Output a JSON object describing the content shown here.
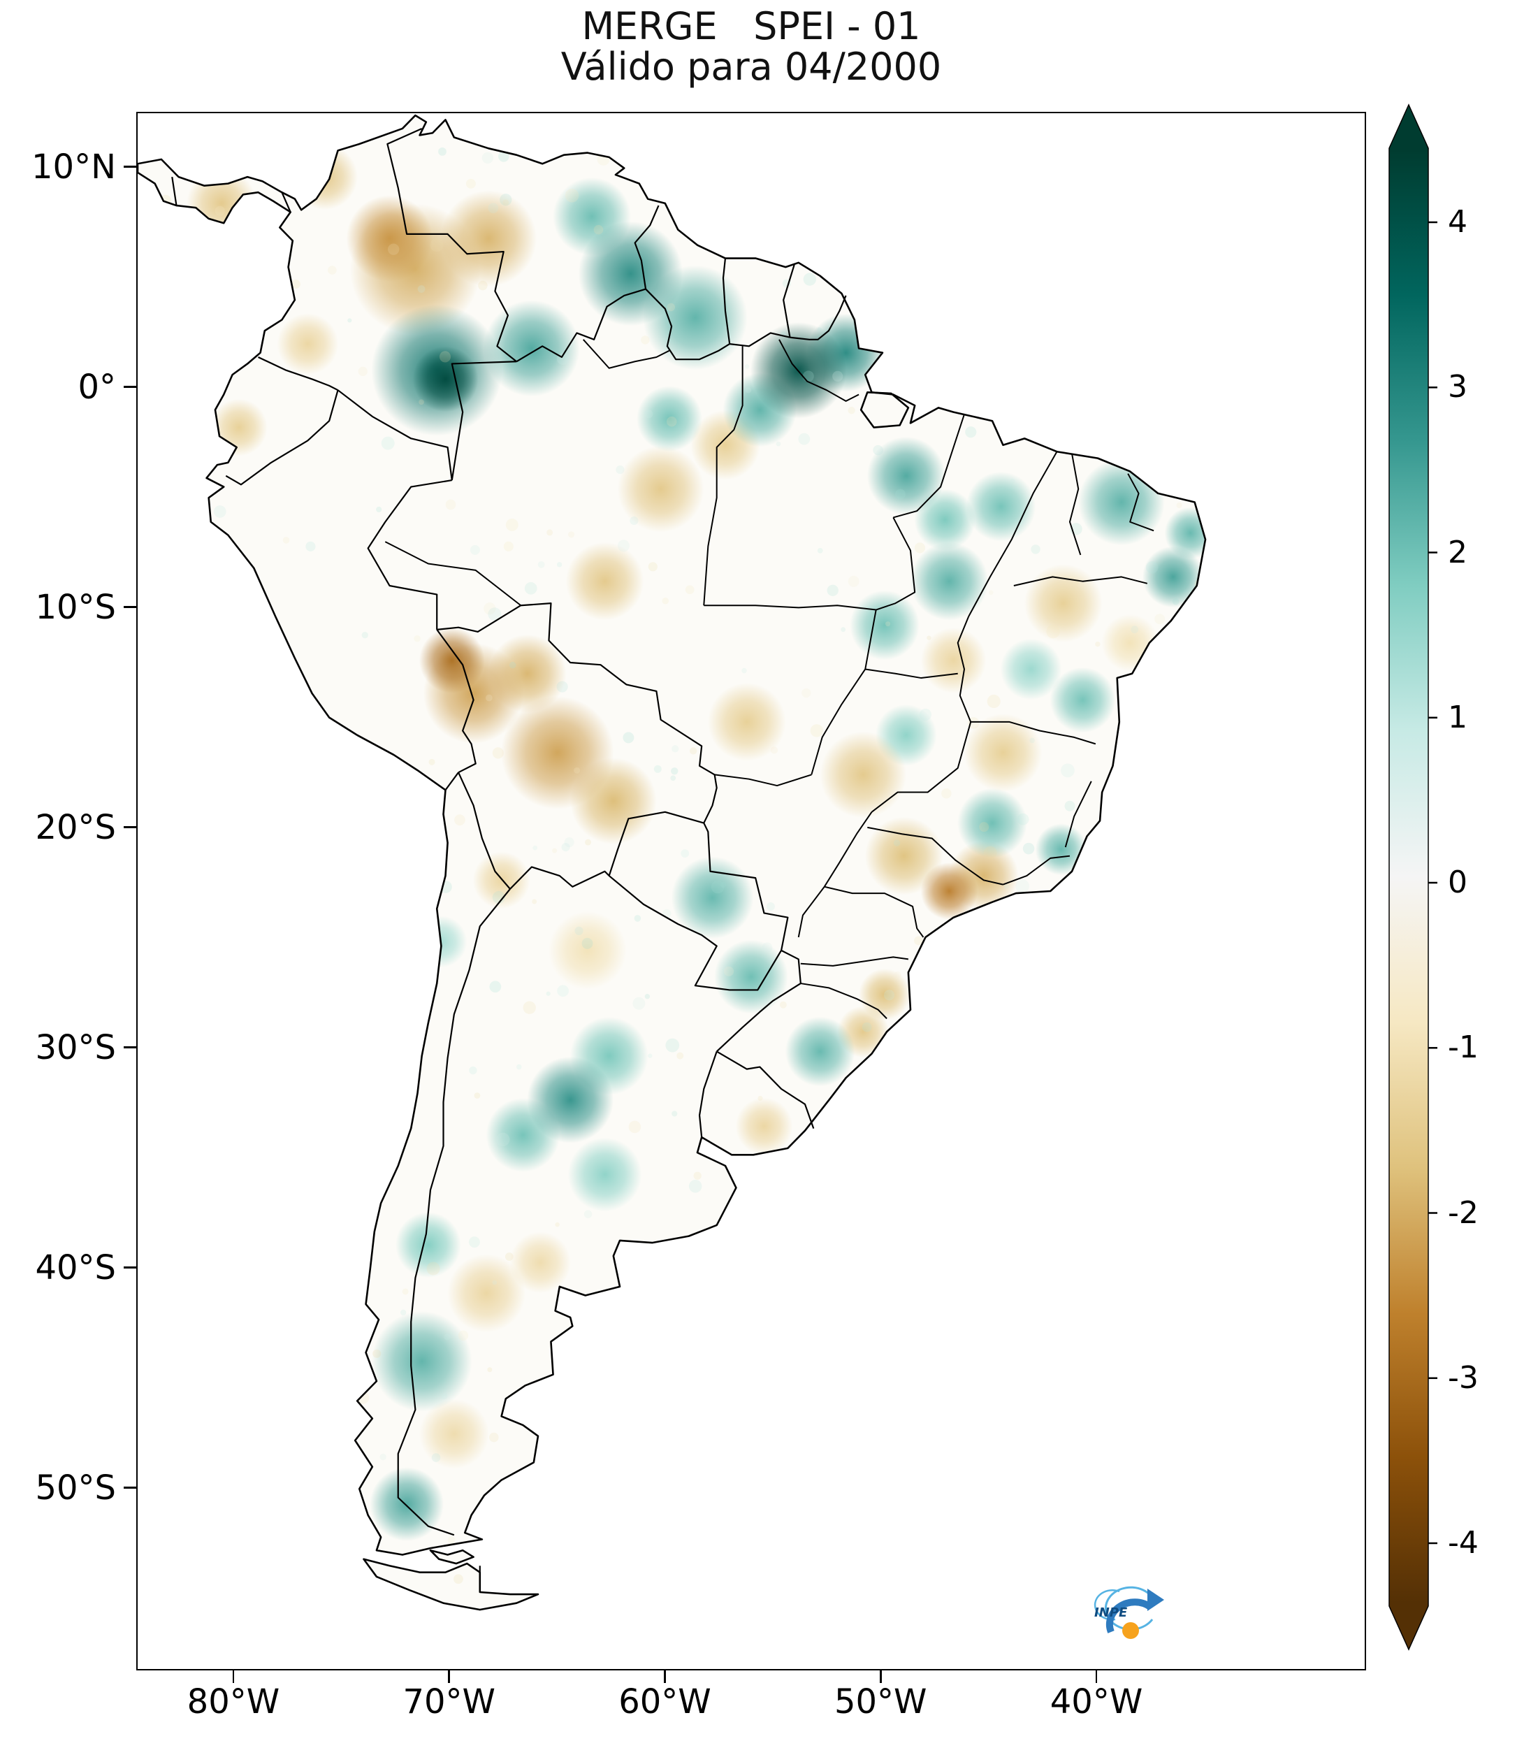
{
  "header": {
    "title": "MERGE   SPEI - 01",
    "subtitle": "Válido para 04/2000"
  },
  "axes": {
    "y_ticks": [
      {
        "label": "10°N",
        "lat": 10
      },
      {
        "label": "0°",
        "lat": 0
      },
      {
        "label": "10°S",
        "lat": -10
      },
      {
        "label": "20°S",
        "lat": -20
      },
      {
        "label": "30°S",
        "lat": -30
      },
      {
        "label": "40°S",
        "lat": -40
      },
      {
        "label": "50°S",
        "lat": -50
      }
    ],
    "x_ticks": [
      {
        "label": "80°W",
        "lon": -80
      },
      {
        "label": "70°W",
        "lon": -70
      },
      {
        "label": "60°W",
        "lon": -60
      },
      {
        "label": "50°W",
        "lon": -50
      },
      {
        "label": "40°W",
        "lon": -40
      }
    ]
  },
  "colorbar": {
    "colormap": "BrBG",
    "vmin": -4,
    "vmax": 4,
    "tick_labels": [
      "4",
      "3",
      "2",
      "1",
      "0",
      "-1",
      "-2",
      "-3",
      "-4"
    ],
    "tick_values": [
      4,
      3,
      2,
      1,
      0,
      -1,
      -2,
      -3,
      -4
    ],
    "colors_top_to_bottom": [
      "#003c30",
      "#01665e",
      "#35978f",
      "#80cdc1",
      "#c7eae5",
      "#f5f5f5",
      "#f6e8c3",
      "#dfc27d",
      "#bf812d",
      "#8c510a",
      "#543005"
    ]
  },
  "logo": {
    "text": "INPE",
    "swirl_color": "#56b3e3",
    "arrow_color": "#2e7bbf",
    "dot_color": "#f6a21d",
    "text_color": "#0f4c81"
  },
  "chart_data": {
    "type": "heatmap",
    "title": "MERGE   SPEI - 01",
    "subtitle": "Válido para 04/2000",
    "dataset": "MERGE",
    "index": "SPEI-01",
    "valid_for": "04/2000",
    "region": "South America",
    "colormap": "BrBG",
    "value_range": [
      -4,
      4
    ],
    "x_tick_labels": [
      "80°W",
      "70°W",
      "60°W",
      "50°W",
      "40°W"
    ],
    "y_tick_labels": [
      "10°N",
      "0°",
      "10°S",
      "20°S",
      "30°S",
      "40°S",
      "50°S"
    ],
    "anomalies": [
      {
        "lon": -70.6,
        "lat": 0.8,
        "spei": 2.6,
        "radius_deg": 3.0
      },
      {
        "lon": -70.2,
        "lat": 0.4,
        "spei": 3.7,
        "radius_deg": 1.5
      },
      {
        "lon": -66.2,
        "lat": 1.8,
        "spei": 1.7,
        "radius_deg": 2.2
      },
      {
        "lon": -61.6,
        "lat": 5.2,
        "spei": 2.2,
        "radius_deg": 2.4
      },
      {
        "lon": -58.6,
        "lat": 3.2,
        "spei": 1.5,
        "radius_deg": 2.4
      },
      {
        "lon": -63.4,
        "lat": 7.8,
        "spei": 1.3,
        "radius_deg": 1.8
      },
      {
        "lon": -53.8,
        "lat": 0.8,
        "spei": 3.5,
        "radius_deg": 2.2
      },
      {
        "lon": -51.6,
        "lat": 1.6,
        "spei": 2.3,
        "radius_deg": 1.8
      },
      {
        "lon": -55.6,
        "lat": -1.0,
        "spei": 1.5,
        "radius_deg": 1.7
      },
      {
        "lon": -59.8,
        "lat": -1.4,
        "spei": 1.2,
        "radius_deg": 1.5
      },
      {
        "lon": -48.8,
        "lat": -4.0,
        "spei": 1.7,
        "radius_deg": 1.8
      },
      {
        "lon": -47.0,
        "lat": -6.0,
        "spei": 1.1,
        "radius_deg": 1.4
      },
      {
        "lon": -46.8,
        "lat": -8.8,
        "spei": 1.5,
        "radius_deg": 1.8
      },
      {
        "lon": -49.8,
        "lat": -10.8,
        "spei": 1.2,
        "radius_deg": 1.6
      },
      {
        "lon": -44.4,
        "lat": -5.4,
        "spei": 1.2,
        "radius_deg": 1.6
      },
      {
        "lon": -38.8,
        "lat": -5.2,
        "spei": 1.5,
        "radius_deg": 2.0
      },
      {
        "lon": -35.6,
        "lat": -6.6,
        "spei": 1.4,
        "radius_deg": 1.2
      },
      {
        "lon": -36.4,
        "lat": -8.6,
        "spei": 1.8,
        "radius_deg": 1.4
      },
      {
        "lon": -40.6,
        "lat": -14.2,
        "spei": 1.2,
        "radius_deg": 1.5
      },
      {
        "lon": -43.0,
        "lat": -12.8,
        "spei": 0.8,
        "radius_deg": 1.4
      },
      {
        "lon": -44.8,
        "lat": -19.8,
        "spei": 1.3,
        "radius_deg": 1.6
      },
      {
        "lon": -41.6,
        "lat": -21.0,
        "spei": 1.4,
        "radius_deg": 1.2
      },
      {
        "lon": -48.8,
        "lat": -15.8,
        "spei": 0.9,
        "radius_deg": 1.4
      },
      {
        "lon": -57.8,
        "lat": -23.2,
        "spei": 1.4,
        "radius_deg": 1.9
      },
      {
        "lon": -56.0,
        "lat": -26.8,
        "spei": 1.3,
        "radius_deg": 1.7
      },
      {
        "lon": -52.8,
        "lat": -30.2,
        "spei": 1.4,
        "radius_deg": 1.6
      },
      {
        "lon": -64.4,
        "lat": -32.4,
        "spei": 2.1,
        "radius_deg": 2.0
      },
      {
        "lon": -66.6,
        "lat": -34.0,
        "spei": 1.2,
        "radius_deg": 1.7
      },
      {
        "lon": -62.6,
        "lat": -30.4,
        "spei": 1.1,
        "radius_deg": 1.8
      },
      {
        "lon": -62.8,
        "lat": -35.8,
        "spei": 0.9,
        "radius_deg": 1.7
      },
      {
        "lon": -71.3,
        "lat": -44.3,
        "spei": 1.5,
        "radius_deg": 2.3
      },
      {
        "lon": -72.0,
        "lat": -50.8,
        "spei": 1.7,
        "radius_deg": 1.7
      },
      {
        "lon": -71.0,
        "lat": -39.0,
        "spei": 1.0,
        "radius_deg": 1.5
      },
      {
        "lon": -70.4,
        "lat": -25.2,
        "spei": 0.7,
        "radius_deg": 1.2
      },
      {
        "lon": -72.8,
        "lat": 6.8,
        "spei": -1.7,
        "radius_deg": 2.0
      },
      {
        "lon": -71.6,
        "lat": 5.4,
        "spei": -1.3,
        "radius_deg": 3.0
      },
      {
        "lon": -68.2,
        "lat": 6.8,
        "spei": -1.2,
        "radius_deg": 2.2
      },
      {
        "lon": -75.8,
        "lat": 9.6,
        "spei": -0.9,
        "radius_deg": 1.5
      },
      {
        "lon": -80.6,
        "lat": 8.4,
        "spei": -0.9,
        "radius_deg": 1.6
      },
      {
        "lon": -76.6,
        "lat": 2.0,
        "spei": -0.7,
        "radius_deg": 1.4
      },
      {
        "lon": -79.8,
        "lat": -1.8,
        "spei": -0.8,
        "radius_deg": 1.3
      },
      {
        "lon": -69.9,
        "lat": -12.4,
        "spei": -2.4,
        "radius_deg": 1.5
      },
      {
        "lon": -68.9,
        "lat": -13.9,
        "spei": -1.5,
        "radius_deg": 2.3
      },
      {
        "lon": -66.4,
        "lat": -13.0,
        "spei": -1.2,
        "radius_deg": 1.8
      },
      {
        "lon": -65.0,
        "lat": -16.6,
        "spei": -1.5,
        "radius_deg": 2.6
      },
      {
        "lon": -62.4,
        "lat": -18.8,
        "spei": -1.1,
        "radius_deg": 2.0
      },
      {
        "lon": -60.2,
        "lat": -4.6,
        "spei": -0.9,
        "radius_deg": 2.0
      },
      {
        "lon": -57.2,
        "lat": -2.6,
        "spei": -0.8,
        "radius_deg": 1.6
      },
      {
        "lon": -62.8,
        "lat": -8.8,
        "spei": -0.9,
        "radius_deg": 1.8
      },
      {
        "lon": -56.2,
        "lat": -15.2,
        "spei": -0.8,
        "radius_deg": 1.8
      },
      {
        "lon": -46.8,
        "lat": -22.9,
        "spei": -2.1,
        "radius_deg": 1.3
      },
      {
        "lon": -45.2,
        "lat": -22.2,
        "spei": -1.2,
        "radius_deg": 1.6
      },
      {
        "lon": -48.9,
        "lat": -21.3,
        "spei": -1.0,
        "radius_deg": 1.8
      },
      {
        "lon": -50.8,
        "lat": -17.6,
        "spei": -0.9,
        "radius_deg": 2.0
      },
      {
        "lon": -44.3,
        "lat": -16.6,
        "spei": -0.8,
        "radius_deg": 1.8
      },
      {
        "lon": -41.5,
        "lat": -9.8,
        "spei": -0.8,
        "radius_deg": 1.8
      },
      {
        "lon": -46.6,
        "lat": -12.4,
        "spei": -0.7,
        "radius_deg": 1.5
      },
      {
        "lon": -38.4,
        "lat": -11.6,
        "spei": -0.5,
        "radius_deg": 1.3
      },
      {
        "lon": -49.8,
        "lat": -27.6,
        "spei": -1.0,
        "radius_deg": 1.2
      },
      {
        "lon": -50.8,
        "lat": -29.3,
        "spei": -0.9,
        "radius_deg": 1.2
      },
      {
        "lon": -55.4,
        "lat": -33.6,
        "spei": -0.7,
        "radius_deg": 1.3
      },
      {
        "lon": -68.3,
        "lat": -41.2,
        "spei": -0.7,
        "radius_deg": 1.8
      },
      {
        "lon": -69.8,
        "lat": -47.6,
        "spei": -0.6,
        "radius_deg": 1.6
      },
      {
        "lon": -65.8,
        "lat": -39.8,
        "spei": -0.6,
        "radius_deg": 1.4
      },
      {
        "lon": -63.6,
        "lat": -25.6,
        "spei": -0.5,
        "radius_deg": 1.8
      },
      {
        "lon": -67.6,
        "lat": -22.4,
        "spei": -0.7,
        "radius_deg": 1.3
      }
    ]
  }
}
